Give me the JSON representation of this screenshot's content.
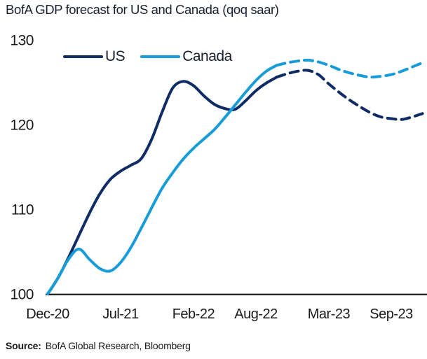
{
  "title": "BofA GDP forecast for US and Canada (qoq saar)",
  "legend": {
    "items": [
      {
        "label": "US",
        "color": "#0f2d64"
      },
      {
        "label": "Canada",
        "color": "#189cd8"
      }
    ]
  },
  "source": {
    "prefix": "Source:",
    "text": "BofA Global Research, Bloomberg"
  },
  "colors": {
    "us_line": "#0f2d64",
    "canada_line": "#189cd8",
    "axis_line": "#262626",
    "tick_text": "#1a1a1a"
  },
  "chart_data": {
    "type": "line",
    "title": "BofA GDP forecast for US and Canada (qoq saar)",
    "xlabel": "",
    "ylabel": "",
    "grid": false,
    "legend_position": "top-left-inside",
    "y_ticks": [
      100,
      110,
      120,
      130
    ],
    "ylim": [
      100,
      130.5
    ],
    "x_tick_labels": [
      "Dec-20",
      "Jul-21",
      "Feb-22",
      "Aug-22",
      "Mar-23",
      "Sep-23"
    ],
    "x_tick_month_index": [
      0,
      7,
      14,
      20,
      27,
      33
    ],
    "x": [
      "Dec-20",
      "Jan-21",
      "Feb-21",
      "Mar-21",
      "Apr-21",
      "May-21",
      "Jun-21",
      "Jul-21",
      "Aug-21",
      "Sep-21",
      "Oct-21",
      "Nov-21",
      "Dec-21",
      "Jan-22",
      "Feb-22",
      "Mar-22",
      "Apr-22",
      "May-22",
      "Jun-22",
      "Jul-22",
      "Aug-22",
      "Sep-22",
      "Oct-22",
      "Nov-22",
      "Dec-22",
      "Jan-23",
      "Feb-23",
      "Mar-23",
      "Apr-23",
      "May-23",
      "Jun-23",
      "Jul-23",
      "Aug-23",
      "Sep-23",
      "Oct-23",
      "Nov-23",
      "Dec-23"
    ],
    "forecast_start_month": "Oct-22",
    "forecast_start_index": 22,
    "forecast_style": "dashed",
    "series": [
      {
        "name": "US",
        "color": "#0f2d64",
        "values": [
          100.0,
          101.9,
          104.3,
          106.9,
          109.5,
          111.8,
          113.5,
          114.5,
          115.2,
          116.0,
          118.3,
          121.5,
          124.3,
          125.1,
          124.6,
          123.4,
          122.4,
          121.9,
          121.8,
          122.8,
          124.0,
          124.9,
          125.6,
          126.0,
          126.3,
          126.4,
          125.9,
          124.8,
          123.8,
          122.9,
          122.1,
          121.4,
          120.9,
          120.7,
          120.6,
          120.9,
          121.3
        ]
      },
      {
        "name": "Canada",
        "color": "#189cd8",
        "values": [
          100.0,
          101.9,
          104.1,
          105.3,
          104.1,
          103.0,
          102.7,
          103.7,
          105.5,
          107.8,
          110.2,
          112.5,
          114.3,
          115.9,
          117.2,
          118.3,
          119.4,
          120.8,
          122.3,
          123.8,
          125.2,
          126.3,
          127.0,
          127.3,
          127.5,
          127.6,
          127.4,
          127.0,
          126.5,
          126.1,
          125.8,
          125.6,
          125.7,
          125.9,
          126.3,
          126.8,
          127.3
        ]
      }
    ]
  },
  "geometry_note": "index 100 baseline at x-axis; values are GDP index level, Dec-20 = 100"
}
